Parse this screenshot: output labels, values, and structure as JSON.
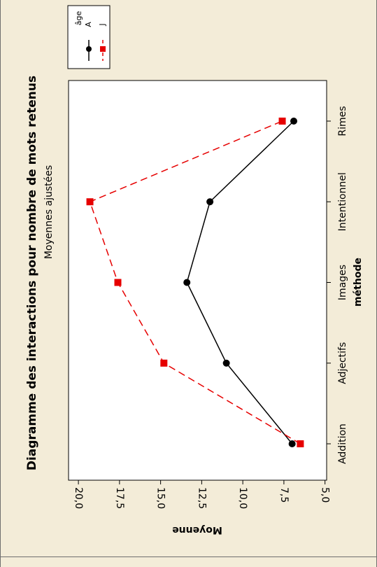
{
  "chart_data": {
    "type": "line",
    "title": "Diagramme des interactions pour nombre de mots retenus",
    "subtitle": "Moyennes ajustées",
    "xlabel": "méthode",
    "ylabel": "Moyenne",
    "categories": [
      "Addition",
      "Adjectifs",
      "Images",
      "Intentionnel",
      "Rimes"
    ],
    "ylim": [
      4.9,
      20.6
    ],
    "yticks": [
      "5,0",
      "7,5",
      "10,0",
      "12,5",
      "15,0",
      "17,5",
      "20,0"
    ],
    "ytick_values": [
      5.0,
      7.5,
      10.0,
      12.5,
      15.0,
      17.5,
      20.0
    ],
    "legend": {
      "title": "âge",
      "position": "top-right",
      "orientation": "rotated"
    },
    "orientation": "rotated-90",
    "series": [
      {
        "name": "A",
        "color": "#000000",
        "line_style": "solid",
        "marker": "circle",
        "values": [
          7.0,
          11.0,
          13.4,
          12.0,
          6.9
        ]
      },
      {
        "name": "J",
        "color": "#e60000",
        "line_style": "dashed",
        "marker": "square",
        "values": [
          6.5,
          14.8,
          17.6,
          19.3,
          7.6
        ]
      }
    ]
  },
  "colors": {
    "panel": "#f3ecd8",
    "plot_bg": "#ffffff",
    "frame": "#6f6f6f",
    "text": "#000000",
    "series_a": "#000000",
    "series_j": "#e60000"
  }
}
